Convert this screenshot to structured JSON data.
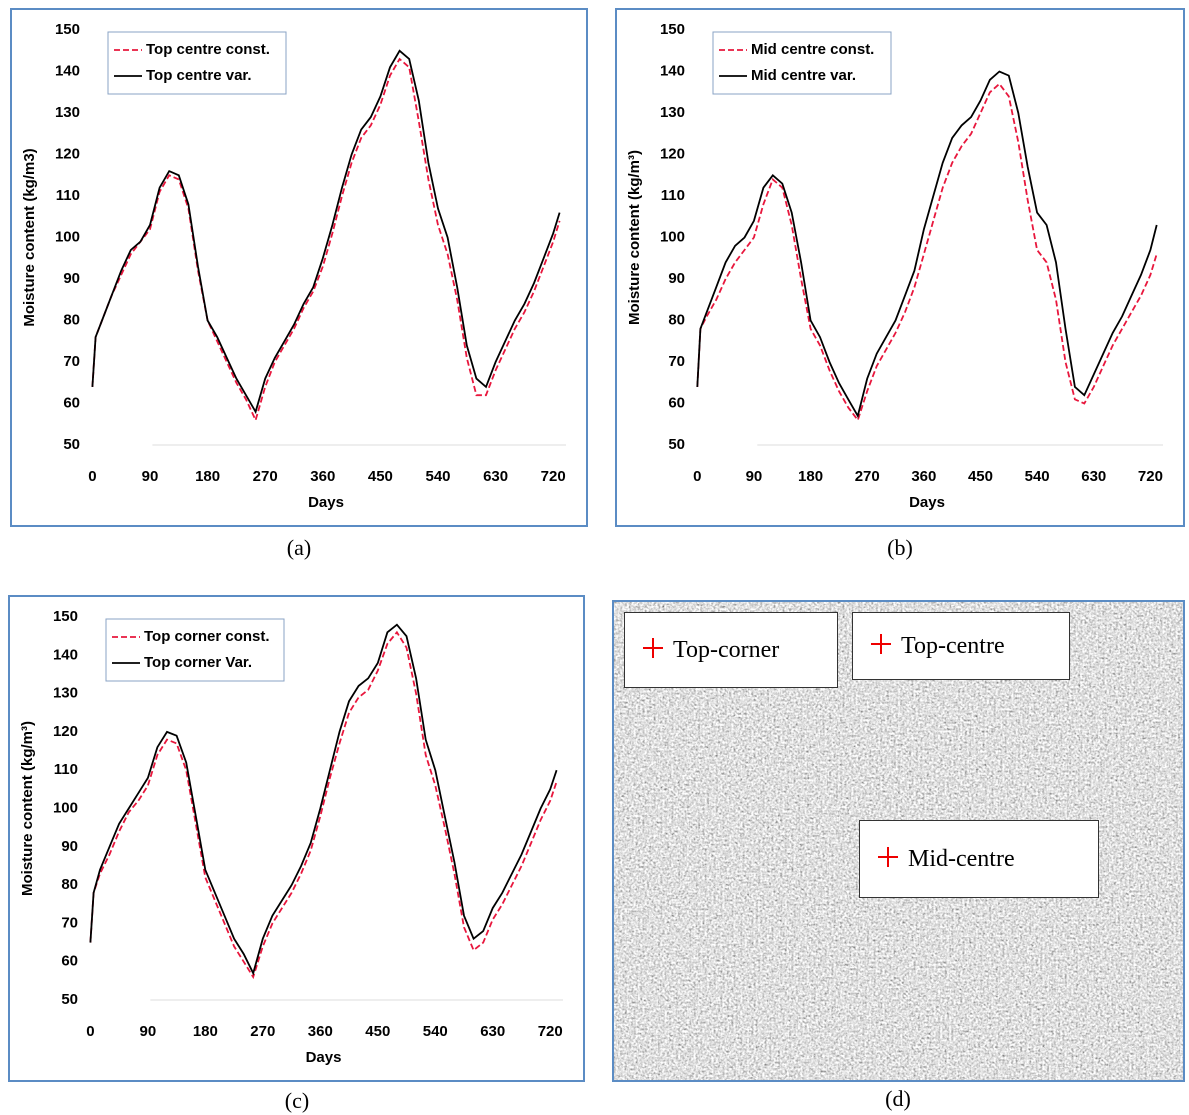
{
  "chart_data": [
    {
      "type": "line",
      "caption": "(a)",
      "y_label": "Moisture content (kg/m3)",
      "x_label": "Days",
      "x": [
        0,
        5,
        15,
        30,
        45,
        60,
        75,
        90,
        105,
        120,
        135,
        150,
        165,
        180,
        195,
        210,
        225,
        240,
        255,
        270,
        285,
        300,
        315,
        330,
        345,
        360,
        375,
        390,
        405,
        420,
        435,
        450,
        465,
        480,
        495,
        510,
        525,
        540,
        555,
        570,
        585,
        600,
        615,
        630,
        645,
        660,
        675,
        690,
        705,
        720,
        730
      ],
      "series": [
        {
          "name": "Top centre const.",
          "color": "#e8173d",
          "dash": true,
          "values": [
            64,
            76,
            80,
            86,
            91,
            96,
            99,
            102,
            111,
            115,
            114,
            107,
            92,
            80,
            75,
            70,
            65,
            61,
            56,
            64,
            70,
            74,
            78,
            83,
            87,
            93,
            101,
            110,
            118,
            124,
            127,
            132,
            139,
            143,
            141,
            128,
            114,
            103,
            96,
            85,
            71,
            62,
            62,
            68,
            73,
            78,
            82,
            87,
            93,
            99,
            104
          ]
        },
        {
          "name": "Top centre var.",
          "color": "#000000",
          "dash": false,
          "values": [
            64,
            76,
            80,
            86,
            92,
            97,
            99,
            103,
            112,
            116,
            115,
            108,
            93,
            80,
            76,
            71,
            66,
            62,
            58,
            66,
            71,
            75,
            79,
            84,
            88,
            95,
            103,
            112,
            120,
            126,
            129,
            134,
            141,
            145,
            143,
            133,
            118,
            107,
            100,
            88,
            74,
            66,
            64,
            70,
            75,
            80,
            84,
            89,
            95,
            101,
            106
          ]
        }
      ],
      "xlim": [
        -10,
        740
      ],
      "xticks": [
        0,
        90,
        180,
        270,
        360,
        450,
        540,
        630,
        720
      ],
      "ylim": [
        50,
        150
      ],
      "yticks": [
        50,
        60,
        70,
        80,
        90,
        100,
        110,
        120,
        130,
        140,
        150
      ]
    },
    {
      "type": "line",
      "caption": "(b)",
      "y_label": "Moisture content (kg/m³)",
      "x_label": "Days",
      "x": [
        0,
        5,
        15,
        30,
        45,
        60,
        75,
        90,
        105,
        120,
        135,
        150,
        165,
        180,
        195,
        210,
        225,
        240,
        255,
        270,
        285,
        300,
        315,
        330,
        345,
        360,
        375,
        390,
        405,
        420,
        435,
        450,
        465,
        480,
        495,
        510,
        525,
        540,
        555,
        570,
        585,
        600,
        615,
        630,
        645,
        660,
        675,
        690,
        705,
        720,
        730
      ],
      "series": [
        {
          "name": "Mid centre const.",
          "color": "#e8173d",
          "dash": true,
          "values": [
            64,
            78,
            81,
            85,
            90,
            94,
            97,
            100,
            108,
            114,
            112,
            103,
            90,
            78,
            74,
            68,
            63,
            59,
            56,
            63,
            69,
            73,
            77,
            82,
            88,
            96,
            104,
            112,
            118,
            122,
            125,
            130,
            135,
            137,
            134,
            123,
            109,
            97,
            94,
            85,
            70,
            61,
            60,
            64,
            69,
            74,
            78,
            82,
            86,
            91,
            96
          ]
        },
        {
          "name": "Mid centre var.",
          "color": "#000000",
          "dash": false,
          "values": [
            64,
            78,
            82,
            88,
            94,
            98,
            100,
            104,
            112,
            115,
            113,
            106,
            94,
            80,
            76,
            70,
            65,
            61,
            57,
            66,
            72,
            76,
            80,
            86,
            92,
            102,
            110,
            118,
            124,
            127,
            129,
            133,
            138,
            140,
            139,
            130,
            117,
            106,
            103,
            94,
            78,
            64,
            62,
            67,
            72,
            77,
            81,
            86,
            91,
            97,
            103
          ]
        }
      ],
      "xlim": [
        -10,
        740
      ],
      "xticks": [
        0,
        90,
        180,
        270,
        360,
        450,
        540,
        630,
        720
      ],
      "ylim": [
        50,
        150
      ],
      "yticks": [
        50,
        60,
        70,
        80,
        90,
        100,
        110,
        120,
        130,
        140,
        150
      ]
    },
    {
      "type": "line",
      "caption": "(c)",
      "y_label": "Moisture content (kg/m³)",
      "x_label": "Days",
      "x": [
        0,
        5,
        15,
        30,
        45,
        60,
        75,
        90,
        105,
        120,
        135,
        150,
        165,
        180,
        195,
        210,
        225,
        240,
        255,
        270,
        285,
        300,
        315,
        330,
        345,
        360,
        375,
        390,
        405,
        420,
        435,
        450,
        465,
        480,
        495,
        510,
        525,
        540,
        555,
        570,
        585,
        600,
        615,
        630,
        645,
        660,
        675,
        690,
        705,
        720,
        730
      ],
      "series": [
        {
          "name": "Top corner const.",
          "color": "#e8173d",
          "dash": true,
          "values": [
            65,
            78,
            83,
            88,
            94,
            99,
            102,
            106,
            114,
            118,
            117,
            110,
            96,
            82,
            76,
            70,
            64,
            60,
            56,
            64,
            70,
            74,
            78,
            83,
            89,
            98,
            108,
            117,
            125,
            129,
            131,
            136,
            143,
            146,
            142,
            130,
            114,
            106,
            95,
            83,
            69,
            63,
            65,
            71,
            75,
            80,
            85,
            91,
            97,
            102,
            107
          ]
        },
        {
          "name": "Top corner Var.",
          "color": "#000000",
          "dash": false,
          "values": [
            65,
            78,
            84,
            90,
            96,
            100,
            104,
            108,
            116,
            120,
            119,
            112,
            98,
            84,
            78,
            72,
            66,
            62,
            57,
            66,
            72,
            76,
            80,
            85,
            91,
            100,
            110,
            120,
            128,
            132,
            134,
            138,
            146,
            148,
            145,
            134,
            118,
            110,
            98,
            86,
            72,
            66,
            68,
            74,
            78,
            83,
            88,
            94,
            100,
            105,
            110
          ]
        }
      ],
      "xlim": [
        -10,
        740
      ],
      "xticks": [
        0,
        90,
        180,
        270,
        360,
        450,
        540,
        630,
        720
      ],
      "ylim": [
        50,
        150
      ],
      "yticks": [
        50,
        60,
        70,
        80,
        90,
        100,
        110,
        120,
        130,
        140,
        150
      ]
    }
  ],
  "image_panel": {
    "caption": "(d)",
    "labels": [
      "Top-corner",
      "Top-centre",
      "Mid-centre"
    ]
  }
}
